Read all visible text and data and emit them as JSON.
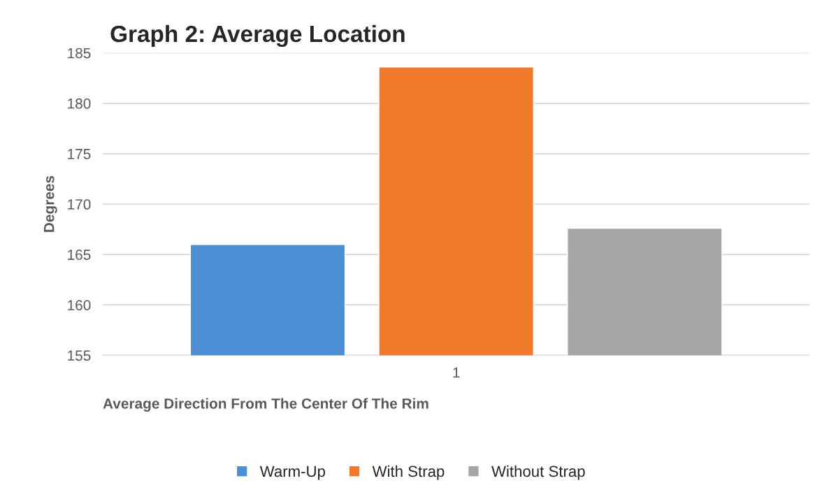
{
  "chart_data": {
    "type": "bar",
    "title": "Graph 2: Average Location",
    "xlabel": "Average Direction From The Center Of The Rim",
    "ylabel": "Degrees",
    "categories": [
      "1"
    ],
    "series": [
      {
        "name": "Warm-Up",
        "color": "#4a8fd4",
        "values": [
          166.0
        ]
      },
      {
        "name": "With Strap",
        "color": "#f07a2a",
        "values": [
          183.6
        ]
      },
      {
        "name": "Without Strap",
        "color": "#a5a5a5",
        "values": [
          167.6
        ]
      }
    ],
    "ylim": [
      155,
      185
    ],
    "yticks": [
      155,
      160,
      165,
      170,
      175,
      180,
      185
    ],
    "grid": "y",
    "legend": "bottom"
  }
}
